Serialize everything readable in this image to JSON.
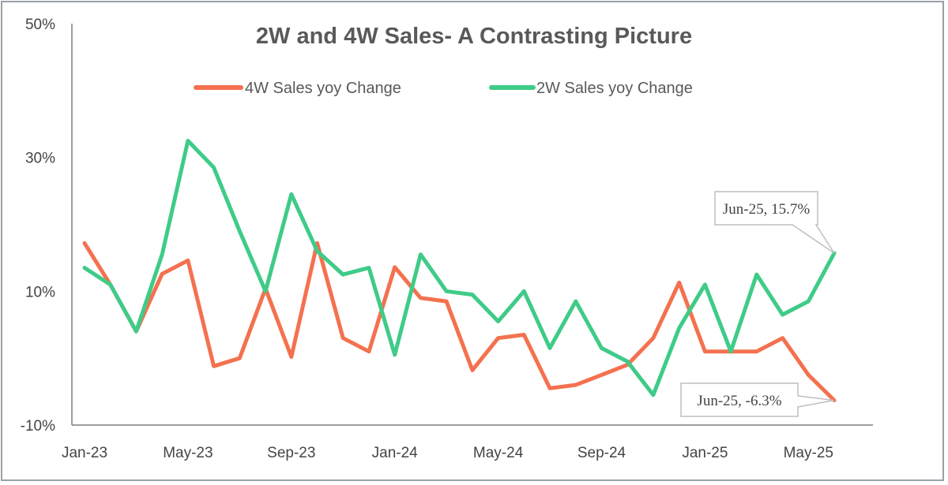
{
  "chart_data": {
    "type": "line",
    "title": "2W and 4W Sales- A Contrasting Picture",
    "xlabel": "",
    "ylabel": "",
    "ylim": [
      -10,
      50
    ],
    "y_ticks": [
      "50%",
      "30%",
      "10%",
      "-10%"
    ],
    "y_tick_values": [
      50,
      30,
      10,
      -10
    ],
    "x": [
      "Jan-23",
      "Feb-23",
      "Mar-23",
      "Apr-23",
      "May-23",
      "Jun-23",
      "Jul-23",
      "Aug-23",
      "Sep-23",
      "Oct-23",
      "Nov-23",
      "Dec-23",
      "Jan-24",
      "Feb-24",
      "Mar-24",
      "Apr-24",
      "May-24",
      "Jun-24",
      "Jul-24",
      "Aug-24",
      "Sep-24",
      "Oct-24",
      "Nov-24",
      "Dec-24",
      "Jan-25",
      "Feb-25",
      "Mar-25",
      "Apr-25",
      "May-25",
      "Jun-25"
    ],
    "x_tick_labels": [
      "Jan-23",
      "May-23",
      "Sep-23",
      "Jan-24",
      "May-24",
      "Sep-24",
      "Jan-25",
      "May-25"
    ],
    "x_tick_positions": [
      0,
      4,
      8,
      12,
      16,
      20,
      24,
      28
    ],
    "legend_position": "top",
    "grid": false,
    "series": [
      {
        "name": "4W Sales yoy Change",
        "color": "#f4714f",
        "values": [
          17.2,
          11.0,
          4.0,
          12.6,
          14.6,
          -1.2,
          0.0,
          10.4,
          0.2,
          17.2,
          3.0,
          1.0,
          13.6,
          9.0,
          8.5,
          -1.8,
          3.0,
          3.5,
          -4.5,
          -4.0,
          -2.5,
          -1.0,
          3.0,
          11.3,
          1.0,
          1.0,
          1.0,
          3.0,
          -2.5,
          -6.3
        ]
      },
      {
        "name": "2W Sales yoy Change",
        "color": "#3fcb88",
        "values": [
          13.5,
          11.0,
          4.0,
          15.5,
          32.5,
          28.5,
          19.0,
          10.0,
          24.5,
          16.0,
          12.5,
          13.5,
          0.5,
          15.5,
          10.0,
          9.5,
          5.5,
          10.0,
          1.5,
          8.5,
          1.5,
          -0.5,
          -5.5,
          4.5,
          11.0,
          1.0,
          12.5,
          6.5,
          8.5,
          15.7
        ]
      }
    ],
    "annotations": [
      {
        "label": "Jun-25, 15.7%",
        "series": 1,
        "index": 29
      },
      {
        "label": "Jun-25, -6.3%",
        "series": 0,
        "index": 29
      }
    ]
  }
}
